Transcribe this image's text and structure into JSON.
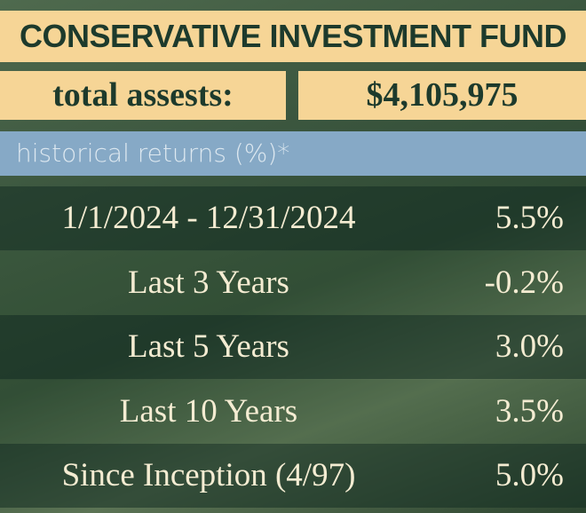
{
  "header": {
    "title": "CONSERVATIVE INVESTMENT FUND"
  },
  "assets": {
    "label": "total assests:",
    "value": "$4,105,975"
  },
  "section": {
    "title": "historical returns (%)*"
  },
  "table": {
    "rows": [
      [
        "1/1/2024 - 12/31/2024",
        "5.5%"
      ],
      [
        "Last 3 Years",
        "-0.2%"
      ],
      [
        "Last 5 Years",
        "3.0%"
      ],
      [
        "Last 10 Years",
        "3.5%"
      ],
      [
        "Since Inception (4/97)",
        "5.0%"
      ]
    ]
  }
}
